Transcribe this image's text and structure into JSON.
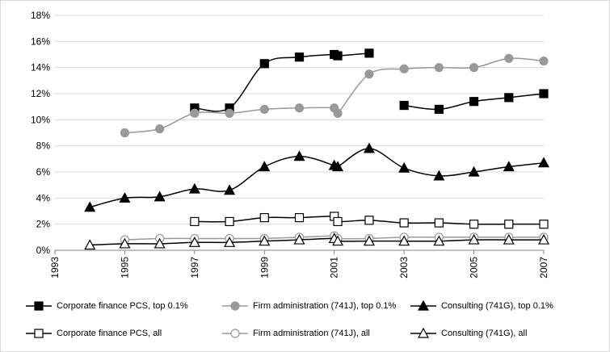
{
  "chart_data": {
    "type": "line",
    "xlim": [
      1993,
      2007
    ],
    "xticks": [
      1993,
      1995,
      1997,
      1999,
      2001,
      2003,
      2005,
      2007
    ],
    "ylim": [
      0,
      18
    ],
    "yticks": [
      {
        "value": 0,
        "label": "0%"
      },
      {
        "value": 2,
        "label": "2%"
      },
      {
        "value": 4,
        "label": "4%"
      },
      {
        "value": 6,
        "label": "6%"
      },
      {
        "value": 8,
        "label": "8%"
      },
      {
        "value": 10,
        "label": "10%"
      },
      {
        "value": 12,
        "label": "12%"
      },
      {
        "value": 14,
        "label": "14%"
      },
      {
        "value": 16,
        "label": "16%"
      },
      {
        "value": 18,
        "label": "18%"
      }
    ],
    "grid": true,
    "legend": "bottom",
    "series": [
      {
        "name": "Corporate finance PCS, top 0.1%",
        "color": "#000000",
        "marker": "square",
        "filled": true,
        "x": [
          1997,
          1998,
          1999,
          2000,
          2001,
          2001.1,
          2002,
          null,
          2003,
          2004,
          2005,
          2006,
          2007
        ],
        "values": [
          10.9,
          10.9,
          14.3,
          14.8,
          15.0,
          14.9,
          15.1,
          null,
          11.1,
          10.8,
          11.4,
          11.7,
          12.0
        ]
      },
      {
        "name": "Firm administration (741J), top 0.1%",
        "color": "#999999",
        "marker": "circle",
        "filled": true,
        "x": [
          1995,
          1996,
          1997,
          1998,
          1999,
          2000,
          2001,
          2001.1,
          2002,
          2003,
          2004,
          2005,
          2006,
          2007
        ],
        "values": [
          9.0,
          9.3,
          10.5,
          10.5,
          10.8,
          10.9,
          10.9,
          10.5,
          13.5,
          13.9,
          14.0,
          14.0,
          14.7,
          14.5
        ]
      },
      {
        "name": "Consulting (741G), top 0.1%",
        "color": "#000000",
        "marker": "triangle",
        "filled": true,
        "x": [
          1994,
          1995,
          1996,
          1997,
          1998,
          1999,
          2000,
          2001,
          2001.1,
          2002,
          2003,
          2004,
          2005,
          2006,
          2007
        ],
        "values": [
          3.3,
          4.0,
          4.1,
          4.7,
          4.6,
          6.4,
          7.2,
          6.5,
          6.4,
          7.8,
          6.3,
          5.7,
          6.0,
          6.4,
          6.7
        ]
      },
      {
        "name": "Corporate finance PCS, all",
        "color": "#000000",
        "marker": "square",
        "filled": false,
        "x": [
          1997,
          1998,
          1999,
          2000,
          2001,
          2001.1,
          2002,
          2003,
          2004,
          2005,
          2006,
          2007
        ],
        "values": [
          2.2,
          2.2,
          2.5,
          2.5,
          2.6,
          2.2,
          2.3,
          2.1,
          2.1,
          2.0,
          2.0,
          2.0
        ]
      },
      {
        "name": "Firm administration (741J), all",
        "color": "#999999",
        "marker": "circle",
        "filled": false,
        "x": [
          1995,
          1996,
          1997,
          1998,
          1999,
          2000,
          2001,
          2001.1,
          2002,
          2003,
          2004,
          2005,
          2006,
          2007
        ],
        "values": [
          0.8,
          0.9,
          0.9,
          0.9,
          0.9,
          1.0,
          1.1,
          0.9,
          0.9,
          1.0,
          1.0,
          1.0,
          1.0,
          1.0
        ]
      },
      {
        "name": "Consulting (741G), all",
        "color": "#000000",
        "marker": "triangle",
        "filled": false,
        "x": [
          1994,
          1995,
          1996,
          1997,
          1998,
          1999,
          2000,
          2001,
          2001.1,
          2002,
          2003,
          2004,
          2005,
          2006,
          2007
        ],
        "values": [
          0.4,
          0.5,
          0.5,
          0.6,
          0.6,
          0.7,
          0.8,
          0.9,
          0.7,
          0.7,
          0.7,
          0.7,
          0.8,
          0.8,
          0.8
        ]
      }
    ]
  }
}
